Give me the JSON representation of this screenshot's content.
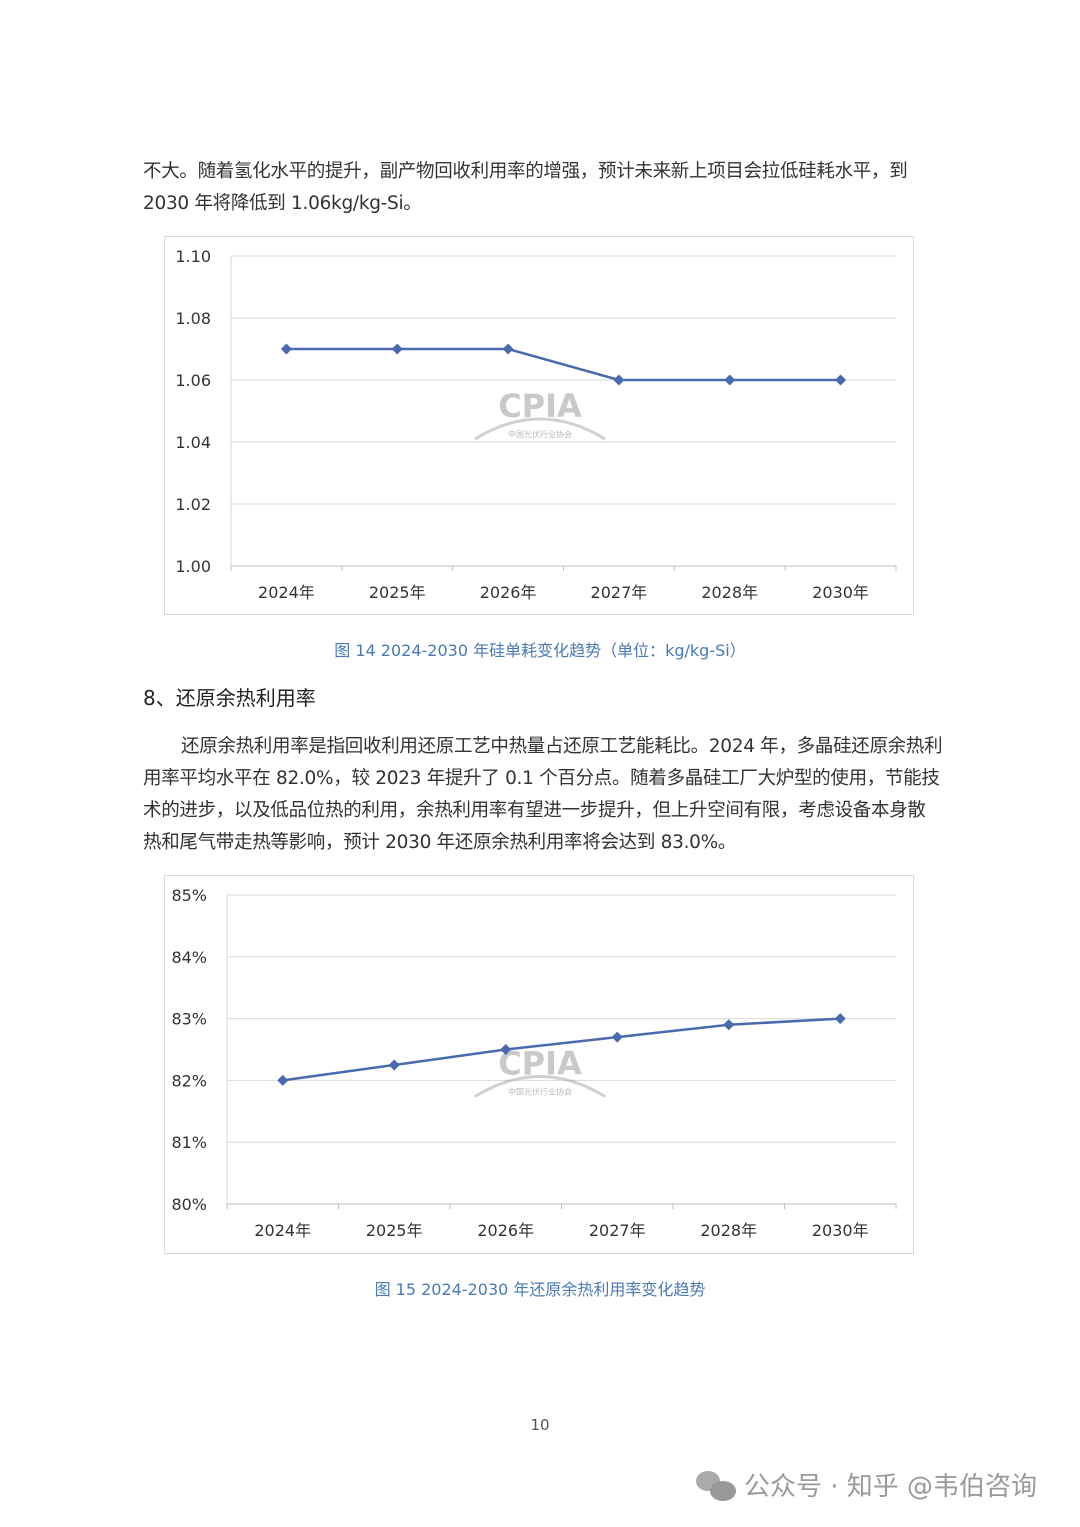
{
  "intro_paragraph": [
    "不大。随着氢化水平的提升，副产物回收利用率的增强，预计未来新上项目会拉低硅耗水平，到",
    "2030 年将降低到 1.06kg/kg-Si。"
  ],
  "section_heading": "8、还原余热利用率",
  "section_paragraph": "还原余热利用率是指回收利用还原工艺中热量占还原工艺能耗比。2024 年，多晶硅还原余热利用率平均水平在 82.0%，较 2023 年提升了 0.1 个百分点。随着多晶硅工厂大炉型的使用，节能技术的进步，以及低品位热的利用，余热利用率有望进一步提升，但上升空间有限，考虑设备本身散热和尾气带走热等影响，预计 2030 年还原余热利用率将会达到 83.0%。",
  "chart_watermark": {
    "text": "CPIA",
    "subtext": "中国光伏行业协会"
  },
  "chart_data": [
    {
      "type": "line",
      "title": "图 14   2024-2030 年硅单耗变化趋势（单位：kg/kg-Si）",
      "categories": [
        "2024年",
        "2025年",
        "2026年",
        "2027年",
        "2028年",
        "2030年"
      ],
      "values": [
        1.07,
        1.07,
        1.07,
        1.06,
        1.06,
        1.06
      ],
      "ylim": [
        1.0,
        1.1
      ],
      "yticks": [
        "1.00",
        "1.02",
        "1.04",
        "1.06",
        "1.08",
        "1.10"
      ],
      "grid": true,
      "color": "#4a6aae",
      "marker": "diamond"
    },
    {
      "type": "line",
      "title": "图 15   2024-2030 年还原余热利用率变化趋势",
      "categories": [
        "2024年",
        "2025年",
        "2026年",
        "2027年",
        "2028年",
        "2030年"
      ],
      "values": [
        82.0,
        82.25,
        82.5,
        82.7,
        82.9,
        83.0
      ],
      "ylim": [
        80,
        85
      ],
      "yticks": [
        "80%",
        "81%",
        "82%",
        "83%",
        "84%",
        "85%"
      ],
      "grid": true,
      "color": "#4a6aae",
      "marker": "diamond"
    }
  ],
  "page_number": "10",
  "footer_watermark": "公众号 · 知乎 @韦伯咨询"
}
